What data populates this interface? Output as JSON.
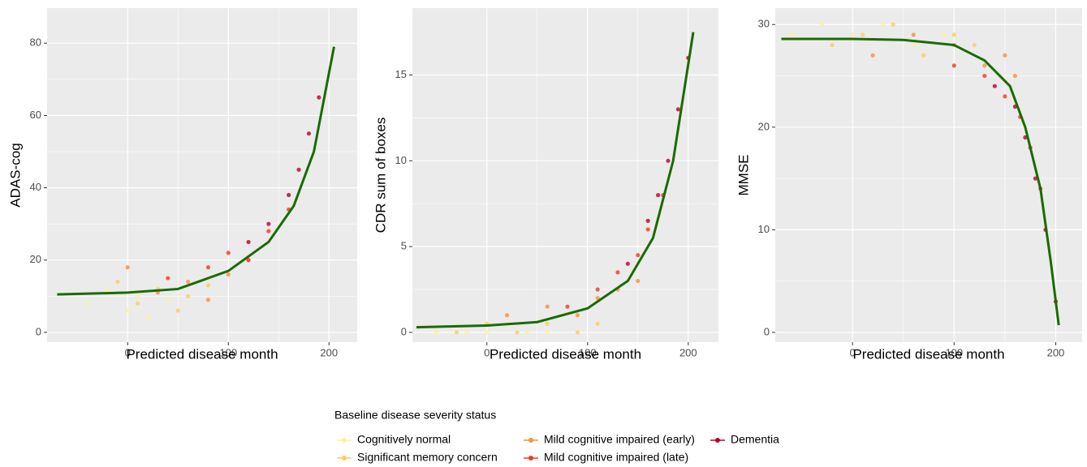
{
  "chart_data": [
    {
      "type": "scatter",
      "xlabel": "Predicted disease month",
      "ylabel": "ADAS-cog",
      "xlim": [
        -80,
        228
      ],
      "ylim": [
        -2.7,
        89.7
      ],
      "xticks": [
        0,
        100,
        200
      ],
      "yticks": [
        0,
        20,
        40,
        60,
        80
      ],
      "grid": true,
      "legend_title": "Baseline disease severity status",
      "series": [
        {
          "name": "Cognitively normal",
          "color": "#fff09a",
          "x": [
            -40,
            -20,
            0,
            10,
            20,
            40
          ],
          "values": [
            8,
            12,
            6,
            10,
            4,
            9
          ]
        },
        {
          "name": "Significant memory concern",
          "color": "#fecc5c",
          "x": [
            -10,
            10,
            30,
            50,
            60,
            80
          ],
          "values": [
            14,
            8,
            12,
            6,
            10,
            13
          ]
        },
        {
          "name": "Mild cognitive impaired (early)",
          "color": "#fd8d3c",
          "x": [
            0,
            30,
            60,
            80,
            100,
            120
          ],
          "values": [
            18,
            11,
            14,
            9,
            16,
            20
          ]
        },
        {
          "name": "Mild cognitive impaired (late)",
          "color": "#f03b20",
          "x": [
            40,
            80,
            100,
            120,
            140,
            160
          ],
          "values": [
            15,
            18,
            22,
            20,
            28,
            34
          ]
        },
        {
          "name": "Dementia",
          "color": "#bd0026",
          "x": [
            120,
            140,
            160,
            170,
            180,
            190
          ],
          "values": [
            25,
            30,
            38,
            45,
            55,
            65
          ]
        }
      ],
      "curve": {
        "color": "#1a6b00",
        "x": [
          -70,
          0,
          50,
          100,
          140,
          165,
          185,
          205
        ],
        "values": [
          10.5,
          11,
          12,
          17,
          25,
          35,
          50,
          79
        ]
      }
    },
    {
      "type": "scatter",
      "xlabel": "Predicted disease month",
      "ylabel": "CDR sum of boxes",
      "xlim": [
        -74,
        230
      ],
      "ylim": [
        -0.57,
        18.9
      ],
      "xticks": [
        0,
        100,
        200
      ],
      "yticks": [
        0,
        5,
        10,
        15
      ],
      "grid": true,
      "series": [
        {
          "color": "#fff09a",
          "x": [
            -50,
            -20,
            0,
            20,
            40,
            60
          ],
          "values": [
            0,
            0,
            0,
            0.5,
            0,
            0
          ]
        },
        {
          "color": "#fecc5c",
          "x": [
            -30,
            0,
            30,
            60,
            90,
            110
          ],
          "values": [
            0,
            0.5,
            0,
            0.5,
            0,
            0.5
          ]
        },
        {
          "color": "#fd8d3c",
          "x": [
            20,
            60,
            90,
            110,
            130,
            150
          ],
          "values": [
            1,
            1.5,
            1,
            2,
            2.5,
            3
          ]
        },
        {
          "color": "#f03b20",
          "x": [
            80,
            110,
            130,
            150,
            160,
            175
          ],
          "values": [
            1.5,
            2.5,
            3.5,
            4.5,
            6,
            8
          ]
        },
        {
          "color": "#bd0026",
          "x": [
            140,
            160,
            170,
            180,
            190,
            200
          ],
          "values": [
            4,
            6.5,
            8,
            10,
            13,
            16
          ]
        }
      ],
      "curve": {
        "color": "#1a6b00",
        "x": [
          -70,
          0,
          50,
          100,
          140,
          165,
          185,
          205
        ],
        "values": [
          0.3,
          0.4,
          0.6,
          1.4,
          3,
          5.5,
          10,
          17.5
        ]
      }
    },
    {
      "type": "scatter",
      "xlabel": "Predicted disease month",
      "ylabel": "MMSE",
      "xlim": [
        -76,
        226
      ],
      "ylim": [
        -0.95,
        31.6
      ],
      "xticks": [
        0,
        100,
        200
      ],
      "yticks": [
        0,
        10,
        20,
        30
      ],
      "grid": true,
      "series": [
        {
          "color": "#fff09a",
          "x": [
            -60,
            -30,
            0,
            30,
            60,
            90
          ],
          "values": [
            29,
            30,
            29,
            30,
            28,
            29
          ]
        },
        {
          "color": "#fecc5c",
          "x": [
            -20,
            10,
            40,
            70,
            100,
            120
          ],
          "values": [
            28,
            29,
            30,
            27,
            29,
            28
          ]
        },
        {
          "color": "#fd8d3c",
          "x": [
            20,
            60,
            100,
            130,
            150,
            160
          ],
          "values": [
            27,
            29,
            28,
            26,
            27,
            25
          ]
        },
        {
          "color": "#f03b20",
          "x": [
            100,
            130,
            150,
            165,
            175,
            185
          ],
          "values": [
            26,
            25,
            23,
            21,
            18,
            14
          ]
        },
        {
          "color": "#bd0026",
          "x": [
            140,
            160,
            170,
            180,
            190,
            200
          ],
          "values": [
            24,
            22,
            19,
            15,
            10,
            3
          ]
        }
      ],
      "curve": {
        "color": "#1a6b00",
        "x": [
          -70,
          0,
          50,
          100,
          130,
          155,
          170,
          185,
          195,
          203
        ],
        "values": [
          28.6,
          28.6,
          28.5,
          28,
          26.5,
          24,
          20,
          14,
          7,
          0.7
        ]
      }
    }
  ]
}
